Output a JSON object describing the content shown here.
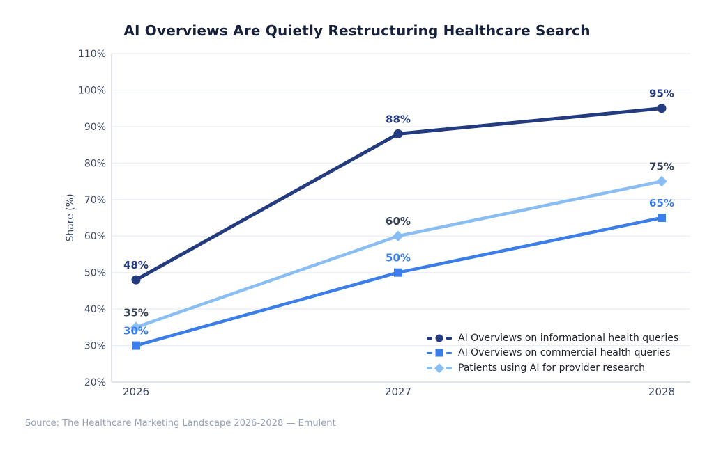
{
  "chart_data": {
    "type": "line",
    "title": "AI Overviews Are Quietly Restructuring Healthcare Search",
    "xlabel": "",
    "ylabel": "Share (%)",
    "categories": [
      "2026",
      "2027",
      "2028"
    ],
    "ylim": [
      20,
      110
    ],
    "y_tick_values": [
      20,
      30,
      40,
      50,
      60,
      70,
      80,
      90,
      100,
      110
    ],
    "y_tick_labels": [
      "20%",
      "30%",
      "40%",
      "50%",
      "60%",
      "70%",
      "80%",
      "90%",
      "100%",
      "110%"
    ],
    "grid": true,
    "legend_position": "lower right",
    "series": [
      {
        "name": "AI Overviews on informational health queries",
        "marker": "circle",
        "color": "#243b80",
        "label_color": "#243b80",
        "values": [
          48,
          88,
          95
        ],
        "labels": [
          "48%",
          "88%",
          "95%"
        ]
      },
      {
        "name": "AI Overviews on commercial health queries",
        "marker": "square",
        "color": "#3b7de9",
        "label_color": "#3b7de9",
        "values": [
          30,
          50,
          65
        ],
        "labels": [
          "30%",
          "50%",
          "65%"
        ]
      },
      {
        "name": "Patients using AI for provider research",
        "marker": "diamond",
        "color": "#8abef2",
        "label_color": "#374255",
        "values": [
          35,
          60,
          75
        ],
        "labels": [
          "35%",
          "60%",
          "75%"
        ]
      }
    ]
  },
  "source": "Source: The Healthcare Marketing Landscape 2026-2028 — Emulent"
}
